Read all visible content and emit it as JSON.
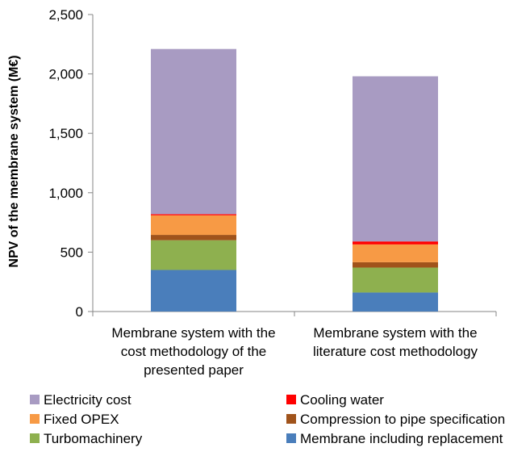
{
  "chart_data": {
    "type": "bar",
    "stacked": true,
    "title": "",
    "xlabel": "",
    "ylabel": "NPV of the membrane system (M€)",
    "ylim": [
      0,
      2500
    ],
    "y_ticks": [
      0,
      500,
      1000,
      1500,
      2000,
      2500
    ],
    "y_tick_labels": [
      "0",
      "500",
      "1,000",
      "1,500",
      "2,000",
      "2,500"
    ],
    "categories": [
      [
        "Membrane system with the",
        "cost methodology of the",
        "presented paper"
      ],
      [
        "Membrane system with the",
        "literature cost methodology"
      ]
    ],
    "grid": false,
    "legend_position": "bottom",
    "series": [
      {
        "name": "Membrane including replacement",
        "color": "#4a7ebb",
        "values": [
          350,
          160
        ]
      },
      {
        "name": "Turbomachinery",
        "color": "#8eb04f",
        "values": [
          250,
          210
        ]
      },
      {
        "name": "Compression to pipe specification",
        "color": "#a0531b",
        "values": [
          45,
          45
        ]
      },
      {
        "name": "Fixed OPEX",
        "color": "#f79a45",
        "values": [
          165,
          150
        ]
      },
      {
        "name": "Cooling water",
        "color": "#ff0000",
        "values": [
          10,
          25
        ]
      },
      {
        "name": "Electricity cost",
        "color": "#a89bc2",
        "values": [
          1390,
          1390
        ]
      }
    ],
    "legend_order": [
      "Electricity cost",
      "Cooling water",
      "Fixed OPEX",
      "Compression to pipe specification",
      "Turbomachinery",
      "Membrane including replacement"
    ]
  }
}
